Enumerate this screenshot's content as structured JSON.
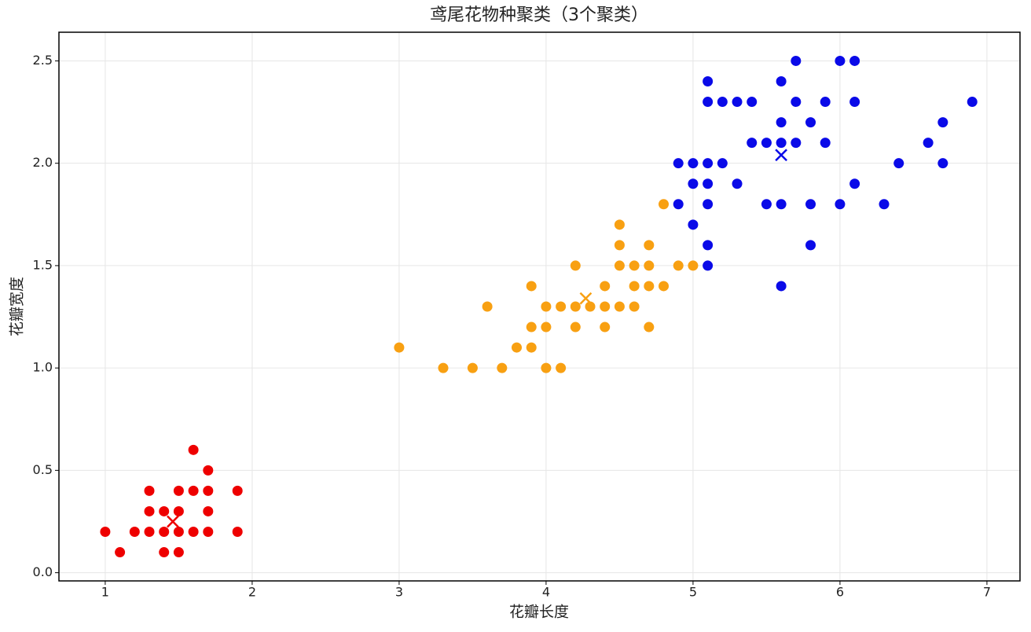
{
  "chart_data": {
    "type": "scatter",
    "title": "鸢尾花物种聚类（3个聚类）",
    "x_label": "花瓣长度",
    "y_label": "花瓣宽度",
    "xlim": [
      0.685,
      7.225
    ],
    "ylim": [
      -0.04,
      2.64
    ],
    "xticks": [
      1,
      2,
      3,
      4,
      5,
      6,
      7
    ],
    "yticks": [
      {
        "value": 0,
        "label": "0.0"
      },
      {
        "value": 0.5,
        "label": "0.5"
      },
      {
        "value": 1,
        "label": "1.0"
      },
      {
        "value": 1.5,
        "label": "1.5"
      },
      {
        "value": 2,
        "label": "2.0"
      },
      {
        "value": 2.5,
        "label": "2.5"
      }
    ],
    "grid": true,
    "series": [
      {
        "color": "#ee0000",
        "centroid": [
          1.46,
          0.25
        ],
        "x": [
          1.0,
          1.1,
          1.2,
          1.3,
          1.3,
          1.3,
          1.4,
          1.4,
          1.4,
          1.5,
          1.5,
          1.5,
          1.5,
          1.6,
          1.6,
          1.6,
          1.7,
          1.7,
          1.7,
          1.7,
          1.9,
          1.9
        ],
        "values": [
          0.2,
          0.1,
          0.2,
          0.4,
          0.3,
          0.2,
          0.3,
          0.2,
          0.1,
          0.4,
          0.3,
          0.2,
          0.1,
          0.6,
          0.4,
          0.2,
          0.5,
          0.4,
          0.3,
          0.2,
          0.4,
          0.2
        ]
      },
      {
        "color": "#f8a012",
        "centroid": [
          4.27,
          1.34
        ],
        "x": [
          3.0,
          3.3,
          3.5,
          3.6,
          3.7,
          3.8,
          3.9,
          3.9,
          3.9,
          4.0,
          4.0,
          4.0,
          4.1,
          4.1,
          4.2,
          4.2,
          4.2,
          4.3,
          4.4,
          4.4,
          4.4,
          4.5,
          4.5,
          4.5,
          4.5,
          4.6,
          4.6,
          4.6,
          4.7,
          4.7,
          4.7,
          4.7,
          4.8,
          4.8,
          4.9,
          5.0
        ],
        "values": [
          1.1,
          1.0,
          1.0,
          1.3,
          1.0,
          1.1,
          1.4,
          1.2,
          1.1,
          1.3,
          1.2,
          1.0,
          1.3,
          1.0,
          1.5,
          1.3,
          1.2,
          1.3,
          1.4,
          1.3,
          1.2,
          1.7,
          1.6,
          1.5,
          1.3,
          1.5,
          1.4,
          1.3,
          1.6,
          1.5,
          1.4,
          1.2,
          1.8,
          1.4,
          1.5,
          1.5
        ]
      },
      {
        "color": "#0a0ae8",
        "centroid": [
          5.6,
          2.04
        ],
        "x": [
          4.9,
          4.9,
          5.0,
          5.0,
          5.0,
          5.1,
          5.1,
          5.1,
          5.1,
          5.1,
          5.1,
          5.1,
          5.2,
          5.2,
          5.3,
          5.3,
          5.4,
          5.4,
          5.5,
          5.5,
          5.6,
          5.6,
          5.6,
          5.6,
          5.6,
          5.7,
          5.7,
          5.7,
          5.8,
          5.8,
          5.8,
          5.9,
          5.9,
          6.0,
          6.0,
          6.1,
          6.1,
          6.1,
          6.3,
          6.4,
          6.6,
          6.7,
          6.7,
          6.9
        ],
        "values": [
          2.0,
          1.8,
          2.0,
          1.9,
          1.7,
          2.4,
          2.3,
          2.0,
          1.9,
          1.8,
          1.6,
          1.5,
          2.3,
          2.0,
          2.3,
          1.9,
          2.3,
          2.1,
          2.1,
          1.8,
          2.4,
          2.2,
          2.1,
          1.8,
          1.4,
          2.5,
          2.3,
          2.1,
          2.2,
          1.8,
          1.6,
          2.3,
          2.1,
          2.5,
          1.8,
          2.5,
          2.3,
          1.9,
          1.8,
          2.0,
          2.1,
          2.2,
          2.0,
          2.3
        ]
      }
    ]
  }
}
